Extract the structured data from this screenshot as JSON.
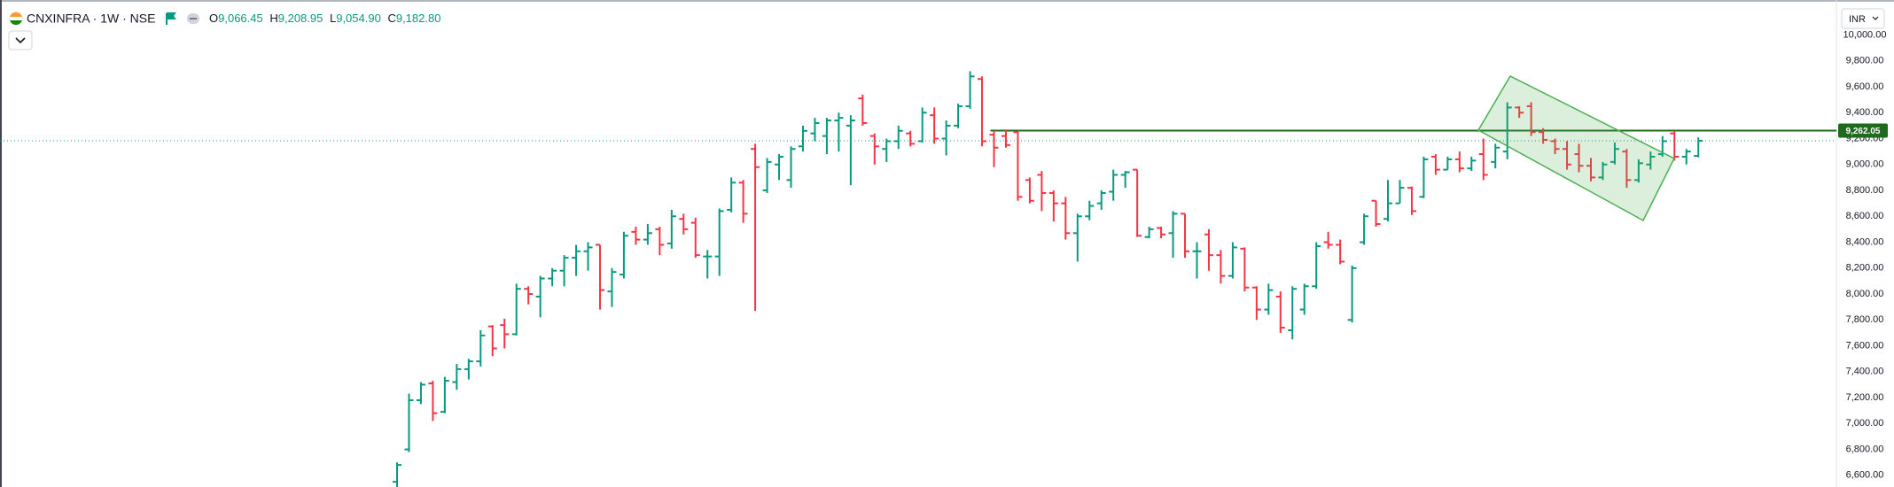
{
  "header": {
    "symbol": "CNXINFRA · 1W · NSE",
    "ohlc": [
      {
        "label": "O",
        "value": "9,066.45"
      },
      {
        "label": "H",
        "value": "9,208.95"
      },
      {
        "label": "L",
        "value": "9,054.90"
      },
      {
        "label": "C",
        "value": "9,182.80"
      }
    ],
    "currency": "INR"
  },
  "chart_data": {
    "type": "ohlc",
    "series": [
      {
        "open": [
          6550,
          6800,
          7180,
          7310,
          7090,
          7320,
          7420,
          7480,
          7750,
          7760,
          7690,
          8040,
          7980,
          8120,
          8180,
          8280,
          8330,
          8380,
          8020,
          8150,
          8480,
          8420,
          8500,
          8390,
          8580,
          8550,
          8290,
          8290,
          8650,
          8860,
          9120,
          8800,
          9000,
          8880,
          9140,
          9240,
          9220,
          9340,
          9300,
          9510,
          9220,
          9120,
          9180,
          9240,
          9180,
          9380,
          9200,
          9300,
          9450,
          9660,
          9230,
          9220,
          9250,
          8880,
          8920,
          8780,
          8700,
          8470,
          8600,
          8700,
          8790,
          8920,
          8960,
          8440,
          8510,
          8470,
          8620,
          8330,
          8460,
          8300,
          8140,
          8350,
          8050,
          7880,
          7980,
          7720,
          7880,
          8060,
          8400,
          8380,
          7800,
          8400,
          8720,
          8580,
          8700,
          8820,
          8750,
          9060,
          8960,
          9040,
          8970,
          9080,
          9020,
          9100,
          9440,
          9450,
          9250,
          9180,
          9120,
          9080,
          8990,
          8900,
          9020,
          9100,
          8880,
          9000,
          9080,
          9240,
          9060,
          9066.45
        ],
        "high": [
          6700,
          7230,
          7320,
          7330,
          7360,
          7460,
          7500,
          7720,
          7760,
          7810,
          8080,
          8060,
          8140,
          8200,
          8300,
          8380,
          8400,
          8380,
          8200,
          8480,
          8520,
          8540,
          8520,
          8650,
          8620,
          8590,
          8340,
          8660,
          8900,
          8880,
          9160,
          9050,
          9080,
          9140,
          9300,
          9360,
          9360,
          9400,
          9380,
          9540,
          9240,
          9200,
          9300,
          9260,
          9440,
          9440,
          9340,
          9470,
          9720,
          9680,
          9260,
          9270,
          9260,
          8900,
          8950,
          8800,
          8750,
          8620,
          8720,
          8800,
          8960,
          8950,
          8960,
          8520,
          8520,
          8640,
          8620,
          8400,
          8500,
          8340,
          8400,
          8360,
          8060,
          8080,
          8020,
          8060,
          8080,
          8400,
          8480,
          8420,
          8220,
          8620,
          8720,
          8880,
          8880,
          8830,
          9060,
          9080,
          9060,
          9100,
          9060,
          9200,
          9160,
          9480,
          9450,
          9480,
          9280,
          9200,
          9180,
          9160,
          9050,
          9020,
          9170,
          9120,
          9040,
          9100,
          9220,
          9260,
          9120,
          9208.95
        ],
        "low": [
          6500,
          6780,
          7150,
          7020,
          7080,
          7260,
          7340,
          7440,
          7520,
          7580,
          7680,
          7920,
          7820,
          8060,
          8060,
          8140,
          8180,
          7880,
          7900,
          8120,
          8380,
          8380,
          8300,
          8350,
          8460,
          8280,
          8120,
          8140,
          8630,
          8550,
          7870,
          8780,
          8880,
          8820,
          9100,
          9180,
          9080,
          9100,
          8840,
          9300,
          9000,
          9020,
          9120,
          9140,
          9170,
          9160,
          9070,
          9280,
          9430,
          9140,
          8980,
          9130,
          8720,
          8700,
          8640,
          8560,
          8420,
          8250,
          8570,
          8650,
          8720,
          8820,
          8440,
          8430,
          8430,
          8280,
          8280,
          8120,
          8180,
          8080,
          8120,
          8020,
          7800,
          7840,
          7700,
          7650,
          7840,
          8040,
          8350,
          8230,
          7780,
          8380,
          8520,
          8560,
          8700,
          8610,
          8740,
          8920,
          8960,
          8940,
          8950,
          8880,
          8970,
          9040,
          9360,
          9220,
          9160,
          9080,
          8960,
          8940,
          8870,
          8880,
          9000,
          8820,
          8860,
          8960,
          9060,
          9030,
          9000,
          9054.9
        ],
        "close": [
          6680,
          7180,
          7300,
          7080,
          7330,
          7420,
          7480,
          7680,
          7580,
          7690,
          8040,
          8000,
          8120,
          8180,
          8280,
          8330,
          8360,
          8030,
          8170,
          8450,
          8420,
          8470,
          8380,
          8600,
          8500,
          8300,
          8290,
          8640,
          8860,
          8620,
          8980,
          9020,
          9060,
          9120,
          9260,
          9320,
          9340,
          9360,
          9340,
          9320,
          9140,
          9180,
          9260,
          9160,
          9400,
          9200,
          9300,
          9450,
          9680,
          9180,
          9130,
          9150,
          8750,
          8720,
          8780,
          8700,
          8470,
          8600,
          8680,
          8780,
          8920,
          8940,
          8450,
          8500,
          8460,
          8620,
          8330,
          8330,
          8300,
          8140,
          8360,
          8050,
          7880,
          8030,
          7740,
          8040,
          8060,
          8370,
          8380,
          8250,
          8200,
          8600,
          8540,
          8700,
          8820,
          8640,
          9040,
          8960,
          9040,
          8970,
          9030,
          8920,
          9130,
          9440,
          9400,
          9250,
          9190,
          9120,
          9000,
          8990,
          8900,
          9000,
          9120,
          8880,
          9010,
          9060,
          9180,
          9060,
          9100,
          9182.8
        ]
      }
    ],
    "up_color": "#089981",
    "down_color": "#f23645",
    "ylim": [
      6510,
      10270
    ],
    "yticks": [
      {
        "value": 6600,
        "label": "6,600.00"
      },
      {
        "value": 6800,
        "label": "6,800.00"
      },
      {
        "value": 7000,
        "label": "7,000.00"
      },
      {
        "value": 7200,
        "label": "7,200.00"
      },
      {
        "value": 7400,
        "label": "7,400.00"
      },
      {
        "value": 7600,
        "label": "7,600.00"
      },
      {
        "value": 7800,
        "label": "7,800.00"
      },
      {
        "value": 8000,
        "label": "8,000.00"
      },
      {
        "value": 8200,
        "label": "8,200.00"
      },
      {
        "value": 8400,
        "label": "8,400.00"
      },
      {
        "value": 8600,
        "label": "8,600.00"
      },
      {
        "value": 8800,
        "label": "8,800.00"
      },
      {
        "value": 9000,
        "label": "9,000.00"
      },
      {
        "value": 9200,
        "label": "9,200.00"
      },
      {
        "value": 9400,
        "label": "9,400.00"
      },
      {
        "value": 9600,
        "label": "9,600.00"
      },
      {
        "value": 9800,
        "label": "9,800.00"
      },
      {
        "value": 10000,
        "label": "10,000.00"
      }
    ],
    "hline": {
      "value": 9262.05,
      "label": "9,262.05",
      "color": "#1e6b1e"
    },
    "last_price_line": true
  }
}
